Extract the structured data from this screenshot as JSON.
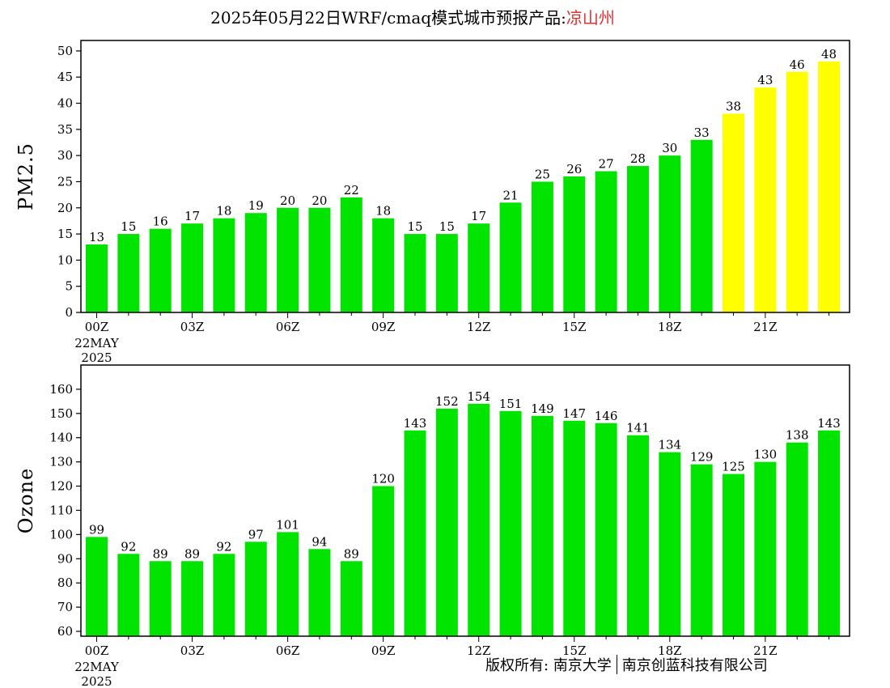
{
  "title": {
    "main": "2025年05月22日WRF/cmaq模式城市预报产品:",
    "city": "凉山州",
    "city_color": "#e03030"
  },
  "footer": {
    "left": "版权所有: 南京大学",
    "right": "南京创蓝科技有限公司"
  },
  "colors": {
    "green": "#00e400",
    "yellow": "#ffff00"
  },
  "chart_data": [
    {
      "type": "bar",
      "ylabel": "PM2.5",
      "ylim": [
        0,
        52
      ],
      "yticks": [
        0,
        5,
        10,
        15,
        20,
        25,
        30,
        35,
        40,
        45,
        50
      ],
      "x_tick_labels": [
        "00Z",
        "03Z",
        "06Z",
        "09Z",
        "12Z",
        "15Z",
        "18Z",
        "21Z"
      ],
      "x_tick_positions": [
        0,
        3,
        6,
        9,
        12,
        15,
        18,
        21
      ],
      "x_date_label": [
        "22MAY",
        "2025"
      ],
      "values": [
        13,
        15,
        16,
        17,
        18,
        19,
        20,
        20,
        22,
        18,
        15,
        15,
        17,
        21,
        25,
        26,
        27,
        28,
        30,
        33,
        38,
        43,
        46,
        48
      ],
      "data_labels": [
        "13",
        "15",
        "16",
        "17",
        "18",
        "19",
        "20",
        "20",
        "22",
        "18",
        "15",
        "15",
        "17",
        "21",
        "25",
        "26",
        "27",
        "28",
        "30",
        "33",
        "38",
        "43",
        "46",
        "48"
      ],
      "bar_colors": [
        "green",
        "green",
        "green",
        "green",
        "green",
        "green",
        "green",
        "green",
        "green",
        "green",
        "green",
        "green",
        "green",
        "green",
        "green",
        "green",
        "green",
        "green",
        "green",
        "green",
        "yellow",
        "yellow",
        "yellow",
        "yellow"
      ],
      "grid": false
    },
    {
      "type": "bar",
      "ylabel": "Ozone",
      "ylim": [
        58,
        170
      ],
      "yticks": [
        60,
        70,
        80,
        90,
        100,
        110,
        120,
        130,
        140,
        150,
        160
      ],
      "x_tick_labels": [
        "00Z",
        "03Z",
        "06Z",
        "09Z",
        "12Z",
        "15Z",
        "18Z",
        "21Z"
      ],
      "x_tick_positions": [
        0,
        3,
        6,
        9,
        12,
        15,
        18,
        21
      ],
      "x_date_label": [
        "22MAY",
        "2025"
      ],
      "values": [
        99,
        92,
        89,
        89,
        92,
        97,
        101,
        94,
        89,
        120,
        143,
        152,
        154,
        151,
        149,
        147,
        146,
        141,
        134,
        129,
        125,
        130,
        138,
        143
      ],
      "data_labels": [
        "99",
        "92",
        "89",
        "89",
        "92",
        "97",
        "101",
        "94",
        "89",
        "120",
        "143",
        "152",
        "154",
        "151",
        "149",
        "147",
        "146",
        "141",
        "134",
        "129",
        "125",
        "130",
        "138",
        "143"
      ],
      "bar_colors": [
        "green",
        "green",
        "green",
        "green",
        "green",
        "green",
        "green",
        "green",
        "green",
        "green",
        "green",
        "green",
        "green",
        "green",
        "green",
        "green",
        "green",
        "green",
        "green",
        "green",
        "green",
        "green",
        "green",
        "green"
      ],
      "grid": false
    }
  ]
}
